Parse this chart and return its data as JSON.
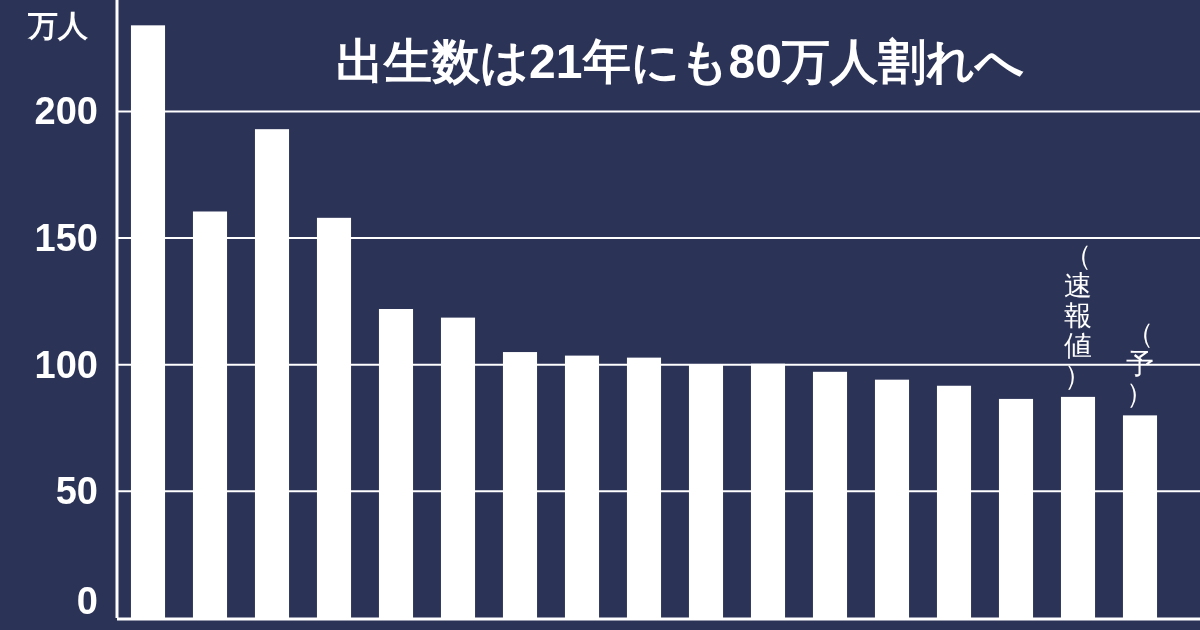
{
  "chart_data": {
    "type": "bar",
    "title": "出生数は21年にも80万人割れへ",
    "ylabel": "万人",
    "categories": [
      null,
      null,
      null,
      null,
      null,
      null,
      null,
      null,
      null,
      null,
      null,
      null,
      null,
      null,
      null,
      null,
      null
    ],
    "values": [
      234,
      160.5,
      193,
      158,
      122,
      118.6,
      105,
      103.6,
      102.8,
      100,
      100.4,
      97.2,
      94.1,
      91.7,
      86.5,
      87.3,
      80
    ],
    "color": "#ffffff",
    "ylim": [
      0,
      244
    ],
    "yticks": [
      0,
      50,
      100,
      150,
      200
    ],
    "grid": "y",
    "annotations": [
      "（速報値）",
      "（予）"
    ]
  }
}
